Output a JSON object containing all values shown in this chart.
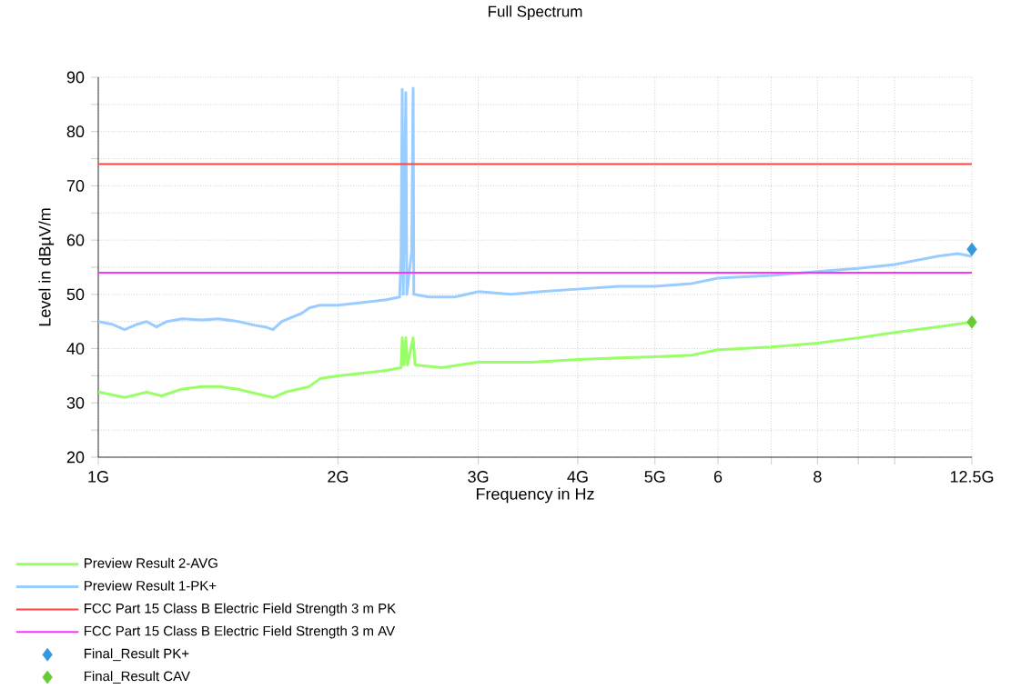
{
  "chart_data": {
    "type": "line",
    "title": "Full Spectrum",
    "xlabel": "Frequency in Hz",
    "ylabel": "Level in dBµV/m",
    "log": "x",
    "grid": true,
    "legend": "bottom",
    "xlim": [
      1,
      12.5
    ],
    "ylim": [
      20,
      90
    ],
    "xticks": [
      {
        "value": 1,
        "label": "1G"
      },
      {
        "value": 2,
        "label": "2G"
      },
      {
        "value": 3,
        "label": "3G"
      },
      {
        "value": 4,
        "label": "4G"
      },
      {
        "value": 5,
        "label": "5G"
      },
      6,
      {
        "value": 7,
        "label": null
      },
      8,
      {
        "value": 9,
        "label": null
      },
      {
        "value": 10,
        "label": null
      },
      {
        "value": 12.5,
        "label": "12.5G"
      }
    ],
    "yticks": [
      20,
      {
        "value": 25,
        "label": null
      },
      30,
      {
        "value": 35,
        "label": null
      },
      40,
      {
        "value": 45,
        "label": null
      },
      50,
      {
        "value": 55,
        "label": null
      },
      60,
      {
        "value": 65,
        "label": null
      },
      70,
      {
        "value": 75,
        "label": null
      },
      80,
      {
        "value": 85,
        "label": null
      },
      90
    ],
    "series": [
      {
        "name": "Preview Result 2-AVG",
        "marker": "none",
        "color": "#99ff66",
        "x": [
          1.0,
          1.08,
          1.15,
          1.2,
          1.27,
          1.35,
          1.42,
          1.5,
          1.6,
          1.657,
          1.72,
          1.84,
          1.9,
          2.0,
          2.15,
          2.3,
          2.4,
          2.408,
          2.42,
          2.433,
          2.445,
          2.485,
          2.5,
          2.7,
          3.0,
          3.5,
          4.0,
          4.5,
          5.0,
          5.56,
          6.0,
          7.0,
          8.0,
          9.0,
          10.0,
          11.3,
          12.5
        ],
        "values": [
          32,
          31,
          32,
          31.3,
          32.5,
          33,
          33,
          32.5,
          31.5,
          31,
          32,
          33,
          34.5,
          35,
          35.5,
          36,
          36.5,
          42,
          37,
          42,
          37,
          42,
          37,
          36.5,
          37.5,
          37.5,
          38,
          38.3,
          38.5,
          38.8,
          39.8,
          40.3,
          41,
          42,
          43,
          44,
          44.9
        ]
      },
      {
        "name": "Preview Result 1-PK+",
        "marker": "none",
        "color": "#99ccff",
        "x": [
          1.0,
          1.04,
          1.079,
          1.12,
          1.15,
          1.183,
          1.22,
          1.274,
          1.35,
          1.415,
          1.5,
          1.572,
          1.62,
          1.657,
          1.7,
          1.8,
          1.841,
          1.9,
          2.0,
          2.15,
          2.3,
          2.39,
          2.4,
          2.408,
          2.415,
          2.433,
          2.44,
          2.475,
          2.485,
          2.49,
          2.6,
          2.8,
          3.0,
          3.3,
          3.6,
          4.03,
          4.5,
          5.0,
          5.56,
          6.0,
          7.0,
          8.0,
          9.0,
          10.0,
          11.3,
          12.0,
          12.5
        ],
        "values": [
          45,
          44.5,
          43.5,
          44.5,
          45,
          44,
          45,
          45.5,
          45.3,
          45.5,
          45,
          44.3,
          44,
          43.5,
          45,
          46.5,
          47.5,
          48,
          48,
          48.5,
          49,
          49.5,
          57,
          87.8,
          50,
          87.2,
          50,
          58,
          88,
          50,
          49.5,
          49.5,
          50.5,
          50,
          50.5,
          51,
          51.5,
          51.5,
          52,
          53,
          53.5,
          54.2,
          54.8,
          55.5,
          57,
          57.5,
          57
        ]
      },
      {
        "name": "Final_Result PK+",
        "type": "scatter",
        "marker": "diamond",
        "color": "#3399dd",
        "x": [
          12.5
        ],
        "values": [
          58.3
        ]
      },
      {
        "name": "Final_Result CAV",
        "type": "scatter",
        "marker": "diamond",
        "color": "#66cc33",
        "x": [
          12.5
        ],
        "values": [
          44.9
        ]
      }
    ],
    "ref_lines": [
      {
        "axis": "y",
        "value": 74,
        "label": "FCC Part 15 Class B Electric Field Strength 3 m PK",
        "color": "#ff4444"
      },
      {
        "axis": "y",
        "value": 54,
        "label": "FCC Part 15 Class B Electric Field Strength 3 m AV",
        "color": "#ff33ff"
      }
    ]
  }
}
